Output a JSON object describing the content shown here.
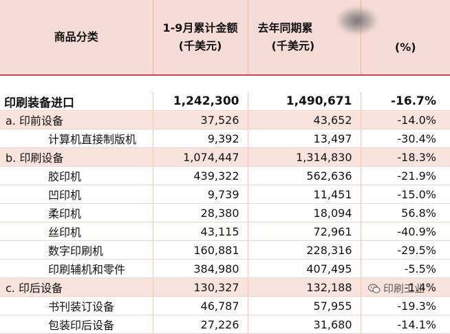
{
  "header": {
    "col_category": "商品分类",
    "col_amount_line1": "1-9月累计金额",
    "col_amount_line2": "(千美元)",
    "col_prev_line1": "去年同期累",
    "col_prev_line2": "(千美元)",
    "col_change": "(%)"
  },
  "rows": [
    {
      "label": "印刷装备进口",
      "amount": "1,242,300",
      "prev": "1,490,671",
      "change": "-16.7%"
    },
    {
      "label": "a. 印前设备",
      "amount": "37,526",
      "prev": "43,652",
      "change": "-14.0%"
    },
    {
      "label": "计算机直接制版机",
      "amount": "9,392",
      "prev": "13,497",
      "change": "-30.4%"
    },
    {
      "label": "b. 印刷设备",
      "amount": "1,074,447",
      "prev": "1,314,830",
      "change": "-18.3%"
    },
    {
      "label": "胶印机",
      "amount": "439,322",
      "prev": "562,636",
      "change": "-21.9%"
    },
    {
      "label": "凹印机",
      "amount": "9,739",
      "prev": "11,451",
      "change": "-15.0%"
    },
    {
      "label": "柔印机",
      "amount": "28,380",
      "prev": "18,094",
      "change": "56.8%"
    },
    {
      "label": "丝印机",
      "amount": "43,115",
      "prev": "72,961",
      "change": "-40.9%"
    },
    {
      "label": "数字印刷机",
      "amount": "160,881",
      "prev": "228,316",
      "change": "-29.5%"
    },
    {
      "label": "印刷辅机和零件",
      "amount": "384,980",
      "prev": "407,495",
      "change": "-5.5%"
    },
    {
      "label": "c. 印后设备",
      "amount": "130,327",
      "prev": "132,188",
      "change": "-1.4%"
    },
    {
      "label": "书刊装订设备",
      "amount": "46,787",
      "prev": "57,955",
      "change": "-19.3%"
    },
    {
      "label": "包装印后设备",
      "amount": "27,226",
      "prev": "31,680",
      "change": "-14.1%"
    }
  ],
  "watermark": {
    "text": "印刷工业",
    "icon": "wechat-icon"
  }
}
